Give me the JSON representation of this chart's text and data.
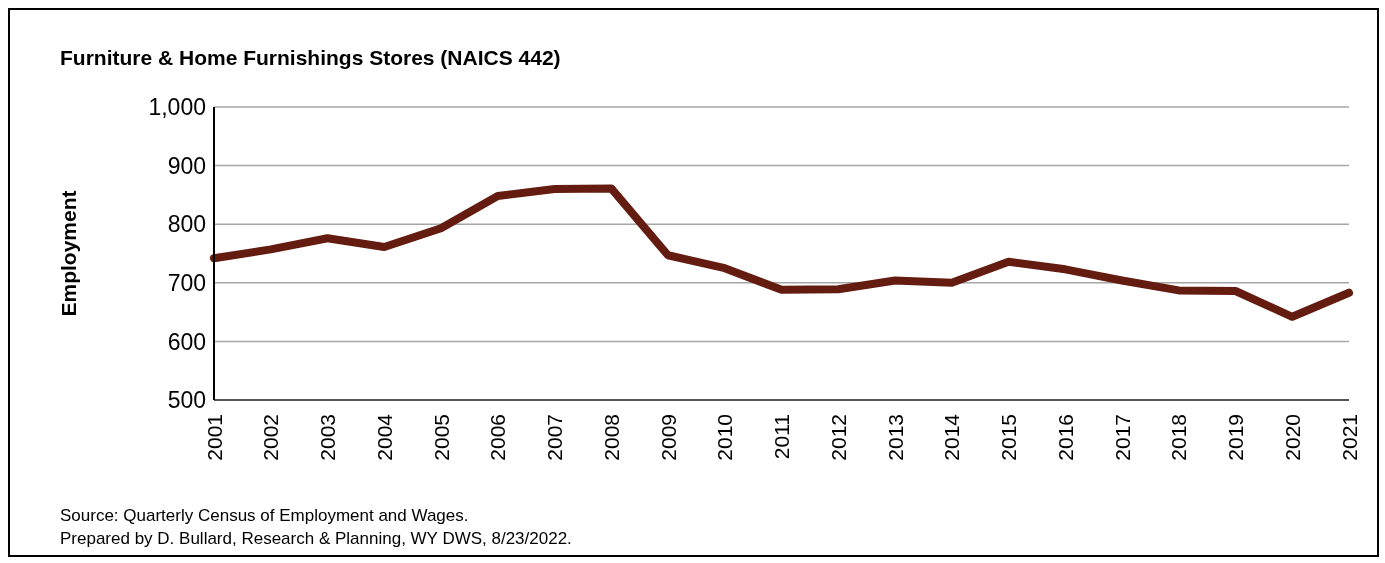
{
  "chart_data": {
    "type": "line",
    "title": "Furniture & Home Furnishings Stores (NAICS 442)",
    "ylabel": "Employment",
    "categories": [
      "2001",
      "2002",
      "2003",
      "2004",
      "2005",
      "2006",
      "2007",
      "2008",
      "2009",
      "2010",
      "2011",
      "2012",
      "2013",
      "2014",
      "2015",
      "2016",
      "2017",
      "2018",
      "2019",
      "2020",
      "2021"
    ],
    "series": [
      {
        "color": "#641c10",
        "values": [
          742,
          757,
          776,
          761,
          793,
          848,
          860,
          861,
          747,
          725,
          688,
          689,
          704,
          700,
          736,
          723,
          704,
          687,
          686,
          642,
          683
        ]
      }
    ],
    "ylim": [
      500,
      1000
    ],
    "yticks": [
      500,
      600,
      700,
      800,
      900,
      {
        "value": 1000,
        "label": "1,000"
      }
    ],
    "grid": "y",
    "legend": false,
    "marker": "none",
    "line_style": "solid",
    "annotations": [
      "Source: Quarterly Census of Employment and Wages.",
      "Prepared by D. Bullard, Research & Planning, WY DWS, 8/23/2022."
    ]
  }
}
